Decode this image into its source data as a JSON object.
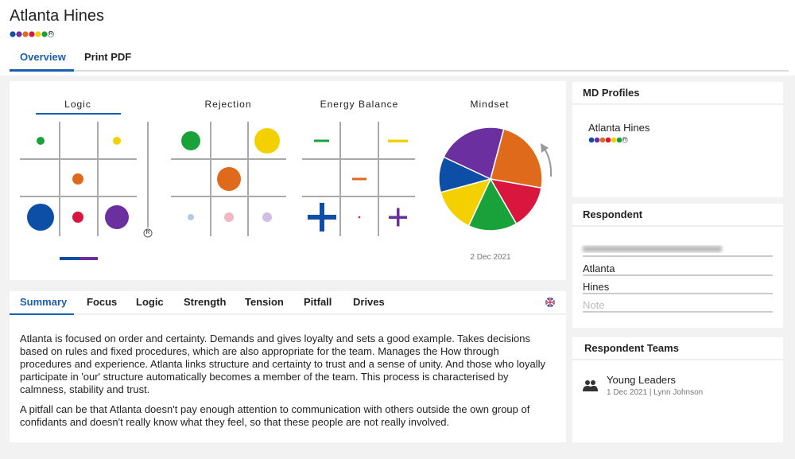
{
  "header": {
    "name": "Atlanta Hines",
    "badge": "R"
  },
  "tabs": [
    "Overview",
    "Print PDF"
  ],
  "charts": {
    "titles": [
      "Logic",
      "Rejection",
      "Energy Balance",
      "Mindset"
    ],
    "date": "2 Dec 2021"
  },
  "subtabs": [
    "Summary",
    "Focus",
    "Logic",
    "Strength",
    "Tension",
    "Pitfall",
    "Drives"
  ],
  "summary": [
    "Atlanta is focused on order and certainty. Demands and gives loyalty and sets a good example. Takes decisions based on rules and fixed procedures, which are also appropriate for the team. Manages the How through procedures and experience. Atlanta links structure and certainty to trust and a sense of unity. And those who loyally participate in 'our' structure automatically becomes a member of the team. This process is characterised by calmness, stability and trust.",
    "A pitfall can be that Atlanta doesn't pay enough attention to communication with others outside the own group of confidants and doesn't really know what they feel, so that these people are not really involved."
  ],
  "sidebar": {
    "md_profiles": {
      "title": "MD Profiles",
      "name": "Atlanta Hines"
    },
    "respondent": {
      "title": "Respondent",
      "fields": [
        "Atlanta",
        "Hines"
      ],
      "note_placeholder": "Note"
    },
    "teams": {
      "title": "Respondent Teams",
      "items": [
        {
          "name": "Young Leaders",
          "meta": "1 Dec 2021 | Lynn Johnson"
        }
      ]
    }
  }
}
